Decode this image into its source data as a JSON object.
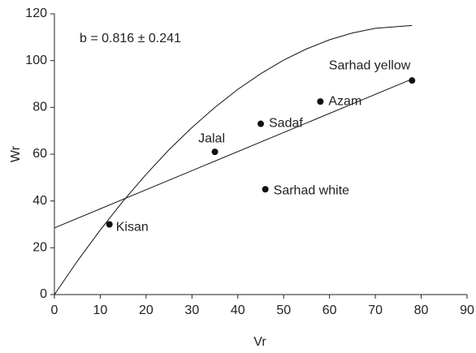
{
  "chart_data": {
    "type": "scatter",
    "annotation": "b = 0.816 ± 0.241",
    "xlabel": "Vr",
    "ylabel": "Wr",
    "xlim": [
      0,
      90
    ],
    "xticks": [
      0,
      10,
      20,
      30,
      40,
      50,
      60,
      70,
      80,
      90
    ],
    "ylim": [
      0,
      120
    ],
    "yticks": [
      0,
      20,
      40,
      60,
      80,
      100,
      120
    ],
    "color": "#111111",
    "points": {
      "labels": [
        "Kisan",
        "Jalal",
        "Sadaf",
        "Azam",
        "Sarhad yellow",
        "Sarhad white"
      ],
      "x": [
        12,
        35,
        45,
        58,
        78,
        46
      ],
      "y": [
        30,
        61,
        73,
        82.5,
        91.5,
        45
      ]
    },
    "lines": [
      {
        "x": [
          0,
          78
        ],
        "y": [
          28.5,
          92.1
        ]
      },
      {
        "x": [
          0,
          5,
          10,
          15,
          20,
          25,
          30,
          35,
          40,
          45,
          50,
          55,
          60,
          65,
          70,
          78
        ],
        "y": [
          0,
          14.3,
          27.6,
          40.0,
          51.4,
          61.9,
          71.4,
          80.0,
          87.7,
          94.4,
          100.2,
          105.0,
          108.9,
          111.8,
          113.8,
          115.0
        ]
      }
    ]
  }
}
